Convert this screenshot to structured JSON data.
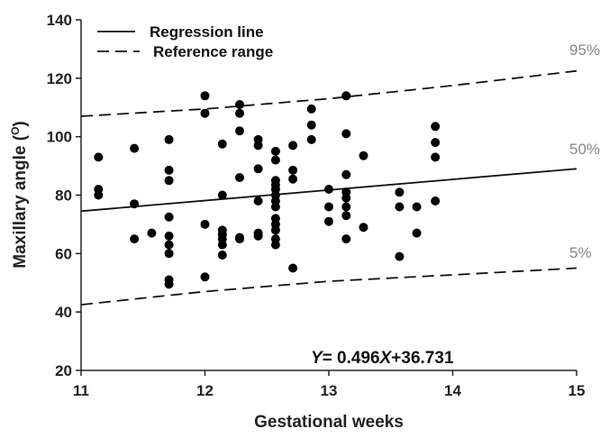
{
  "chart_data": {
    "type": "scatter",
    "xlabel": "Gestational weeks",
    "ylabel_main": "Maxillary angle (",
    "ylabel_sup": "O",
    "ylabel_close": ")",
    "xlim": [
      11,
      15
    ],
    "ylim": [
      20,
      140
    ],
    "xticks": [
      "11",
      "12",
      "13",
      "14",
      "15"
    ],
    "yticks": [
      "20",
      "40",
      "60",
      "80",
      "100",
      "120",
      "140"
    ],
    "grid": false,
    "legend": {
      "placement": "top-left",
      "entries": [
        {
          "label": "Regression line",
          "style": "solid"
        },
        {
          "label": "Reference range",
          "style": "dashed"
        }
      ]
    },
    "equation": {
      "y": "Y",
      "eq": "= 0.496",
      "x": "X",
      "rest": "+36.731"
    },
    "percentile_labels": [
      "95%",
      "50%",
      "5%"
    ],
    "lines": [
      {
        "name": "95%",
        "style": "dashed",
        "x": [
          11,
          12,
          13,
          14,
          15
        ],
        "y": [
          107,
          109.5,
          113,
          117.5,
          122.5
        ]
      },
      {
        "name": "50%",
        "style": "solid",
        "x": [
          11,
          15
        ],
        "y": [
          74.5,
          89
        ]
      },
      {
        "name": "5%",
        "style": "dashed",
        "x": [
          11,
          12,
          13,
          14,
          15
        ],
        "y": [
          42.5,
          47,
          50.5,
          52.7,
          55
        ]
      }
    ],
    "points": [
      [
        11.14,
        93
      ],
      [
        11.14,
        82
      ],
      [
        11.14,
        80
      ],
      [
        11.43,
        96
      ],
      [
        11.43,
        77
      ],
      [
        11.43,
        65
      ],
      [
        11.57,
        67
      ],
      [
        11.71,
        99
      ],
      [
        11.71,
        88.5
      ],
      [
        11.71,
        85
      ],
      [
        11.71,
        72.5
      ],
      [
        11.71,
        66
      ],
      [
        11.71,
        63
      ],
      [
        11.71,
        60
      ],
      [
        11.71,
        51
      ],
      [
        11.71,
        49.5
      ],
      [
        12.0,
        114
      ],
      [
        12.0,
        108
      ],
      [
        12.0,
        70
      ],
      [
        12.0,
        52
      ],
      [
        12.14,
        97.5
      ],
      [
        12.14,
        80
      ],
      [
        12.14,
        68
      ],
      [
        12.14,
        66.5
      ],
      [
        12.14,
        65
      ],
      [
        12.14,
        63
      ],
      [
        12.14,
        59.5
      ],
      [
        12.28,
        111
      ],
      [
        12.28,
        108
      ],
      [
        12.28,
        102
      ],
      [
        12.28,
        86
      ],
      [
        12.28,
        65.5
      ],
      [
        12.28,
        65
      ],
      [
        12.43,
        99
      ],
      [
        12.43,
        97
      ],
      [
        12.43,
        89
      ],
      [
        12.43,
        78
      ],
      [
        12.43,
        67
      ],
      [
        12.43,
        66
      ],
      [
        12.57,
        95
      ],
      [
        12.57,
        92
      ],
      [
        12.57,
        85
      ],
      [
        12.57,
        83.5
      ],
      [
        12.57,
        82
      ],
      [
        12.57,
        80
      ],
      [
        12.57,
        78
      ],
      [
        12.57,
        76
      ],
      [
        12.57,
        72
      ],
      [
        12.57,
        70
      ],
      [
        12.57,
        68
      ],
      [
        12.57,
        65
      ],
      [
        12.57,
        63
      ],
      [
        12.71,
        97
      ],
      [
        12.71,
        88.5
      ],
      [
        12.71,
        85.5
      ],
      [
        12.71,
        55
      ],
      [
        12.86,
        109.5
      ],
      [
        12.86,
        104
      ],
      [
        12.86,
        99
      ],
      [
        13.0,
        82
      ],
      [
        13.0,
        76
      ],
      [
        13.0,
        71
      ],
      [
        13.14,
        114
      ],
      [
        13.14,
        101
      ],
      [
        13.14,
        87
      ],
      [
        13.14,
        81
      ],
      [
        13.14,
        79
      ],
      [
        13.14,
        76
      ],
      [
        13.14,
        73
      ],
      [
        13.14,
        65
      ],
      [
        13.28,
        93.5
      ],
      [
        13.28,
        69
      ],
      [
        13.57,
        81
      ],
      [
        13.57,
        76
      ],
      [
        13.57,
        59
      ],
      [
        13.71,
        76
      ],
      [
        13.71,
        67
      ],
      [
        13.86,
        103.5
      ],
      [
        13.86,
        98
      ],
      [
        13.86,
        93
      ],
      [
        13.86,
        78
      ]
    ]
  }
}
